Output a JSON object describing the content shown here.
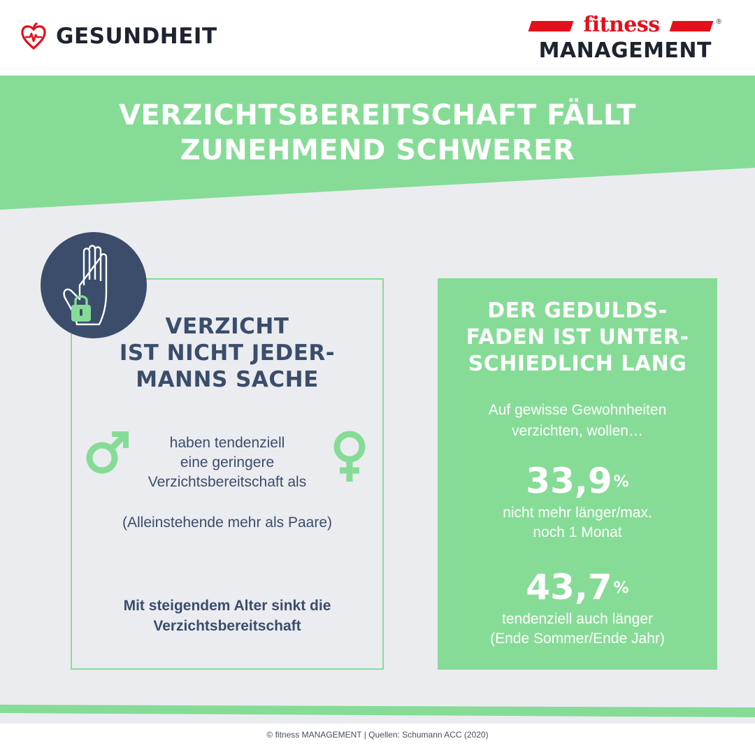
{
  "header": {
    "section_label": "GESUNDHEIT",
    "brand_top": "fitness",
    "brand_bottom": "MANAGEMENT",
    "brand_reg": "®"
  },
  "title": {
    "line1": "VERZICHTSBEREITSCHAFT FÄLLT",
    "line2": "ZUNEHMEND SCHWERER"
  },
  "left": {
    "icon": "raised-hand-lock-icon",
    "heading_lines": [
      "VERZICHT",
      "IST NICHT JEDER-",
      "MANNS SACHE"
    ],
    "male_icon": "male-symbol-icon",
    "female_icon": "female-symbol-icon",
    "gender_lines": [
      "haben tendenziell",
      "eine geringere",
      "Verzichtsbereitschaft als"
    ],
    "singles": "(Alleinstehende mehr als Paare)",
    "age_lines": [
      "Mit steigendem Alter sinkt die",
      "Verzichtsbereitschaft"
    ]
  },
  "right": {
    "heading_lines": [
      "DER GEDULDS-",
      "FADEN IST UNTER-",
      "SCHIEDLICH LANG"
    ],
    "intro_lines": [
      "Auf gewisse Gewohnheiten",
      "verzichten, wollen…"
    ],
    "stat1": {
      "value": "33,9",
      "unit": "%",
      "desc_lines": [
        "nicht mehr länger/max.",
        "noch 1 Monat"
      ]
    },
    "stat2": {
      "value": "43,7",
      "unit": "%",
      "desc_lines": [
        "tendenziell auch länger",
        "(Ende Sommer/Ende Jahr)"
      ]
    }
  },
  "footer": "© fitness MANAGEMENT  |  Quellen: Schumann ACC (2020)",
  "colors": {
    "green": "#86dc96",
    "navy": "#3b4d6b",
    "red": "#e3101b",
    "grey": "#ebecf0"
  }
}
